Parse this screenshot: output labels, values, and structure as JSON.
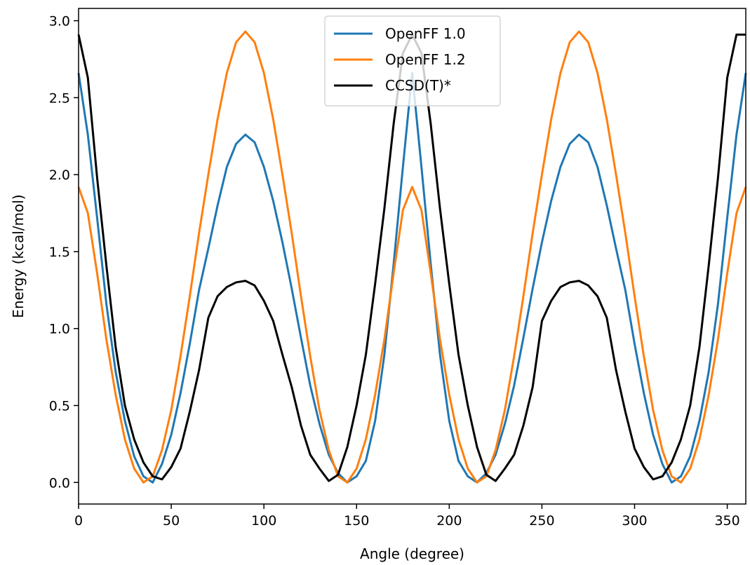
{
  "chart_data": {
    "type": "line",
    "title": "",
    "xlabel": "Angle (degree)",
    "ylabel": "Energy (kcal/mol)",
    "xlim": [
      0,
      360
    ],
    "ylim": [
      -0.14,
      3.08
    ],
    "xticks": [
      0,
      50,
      100,
      150,
      200,
      250,
      300,
      350
    ],
    "yticks": [
      0.0,
      0.5,
      1.0,
      1.5,
      2.0,
      2.5,
      3.0
    ],
    "ytick_labels": [
      "0.0",
      "0.5",
      "1.0",
      "1.5",
      "2.0",
      "2.5",
      "3.0"
    ],
    "grid": false,
    "legend_position": "top-center",
    "x": [
      0,
      5,
      10,
      15,
      20,
      25,
      30,
      35,
      40,
      45,
      50,
      55,
      60,
      65,
      70,
      75,
      80,
      85,
      90,
      95,
      100,
      105,
      110,
      115,
      120,
      125,
      130,
      135,
      140,
      145,
      150,
      155,
      160,
      165,
      170,
      175,
      180,
      185,
      190,
      195,
      200,
      205,
      210,
      215,
      220,
      225,
      230,
      235,
      240,
      245,
      250,
      255,
      260,
      265,
      270,
      275,
      280,
      285,
      290,
      295,
      300,
      305,
      310,
      315,
      320,
      325,
      330,
      335,
      340,
      345,
      350,
      355,
      360
    ],
    "series": [
      {
        "name": "OpenFF 1.0",
        "color": "#1f77b4",
        "values": [
          2.66,
          2.26,
          1.72,
          1.16,
          0.72,
          0.4,
          0.17,
          0.04,
          0.0,
          0.12,
          0.31,
          0.58,
          0.9,
          1.25,
          1.52,
          1.8,
          2.05,
          2.2,
          2.26,
          2.21,
          2.05,
          1.83,
          1.56,
          1.26,
          0.94,
          0.63,
          0.38,
          0.18,
          0.06,
          0.0,
          0.04,
          0.14,
          0.4,
          0.83,
          1.42,
          2.05,
          2.66,
          2.05,
          1.42,
          0.83,
          0.4,
          0.14,
          0.04,
          0.0,
          0.06,
          0.18,
          0.38,
          0.63,
          0.94,
          1.26,
          1.56,
          1.83,
          2.05,
          2.2,
          2.26,
          2.21,
          2.05,
          1.8,
          1.52,
          1.25,
          0.9,
          0.58,
          0.31,
          0.12,
          0.0,
          0.04,
          0.17,
          0.4,
          0.72,
          1.16,
          1.72,
          2.26,
          2.66
        ]
      },
      {
        "name": "OpenFF 1.2",
        "color": "#ff7f0e",
        "values": [
          1.92,
          1.75,
          1.36,
          0.93,
          0.57,
          0.28,
          0.09,
          0.0,
          0.04,
          0.21,
          0.47,
          0.82,
          1.21,
          1.62,
          2.0,
          2.36,
          2.66,
          2.86,
          2.93,
          2.86,
          2.66,
          2.36,
          2.0,
          1.62,
          1.21,
          0.82,
          0.47,
          0.21,
          0.04,
          0.0,
          0.09,
          0.28,
          0.57,
          0.93,
          1.36,
          1.77,
          1.92,
          1.77,
          1.36,
          0.93,
          0.57,
          0.28,
          0.09,
          0.0,
          0.04,
          0.21,
          0.47,
          0.82,
          1.21,
          1.62,
          2.0,
          2.36,
          2.66,
          2.86,
          2.93,
          2.86,
          2.66,
          2.36,
          2.0,
          1.62,
          1.21,
          0.82,
          0.47,
          0.21,
          0.04,
          0.0,
          0.09,
          0.28,
          0.57,
          0.93,
          1.36,
          1.75,
          1.92
        ]
      },
      {
        "name": "CCSD(T)*",
        "color": "#000000",
        "values": [
          2.91,
          2.63,
          1.98,
          1.41,
          0.88,
          0.5,
          0.28,
          0.13,
          0.04,
          0.02,
          0.1,
          0.22,
          0.46,
          0.73,
          1.07,
          1.21,
          1.27,
          1.3,
          1.31,
          1.28,
          1.18,
          1.05,
          0.83,
          0.62,
          0.37,
          0.18,
          0.09,
          0.01,
          0.05,
          0.23,
          0.5,
          0.83,
          1.29,
          1.78,
          2.33,
          2.79,
          2.91,
          2.79,
          2.33,
          1.78,
          1.29,
          0.83,
          0.5,
          0.23,
          0.05,
          0.01,
          0.09,
          0.18,
          0.37,
          0.62,
          1.05,
          1.18,
          1.27,
          1.3,
          1.31,
          1.28,
          1.21,
          1.07,
          0.73,
          0.46,
          0.22,
          0.1,
          0.02,
          0.04,
          0.13,
          0.28,
          0.5,
          0.88,
          1.41,
          1.98,
          2.63,
          2.91,
          2.91
        ]
      }
    ]
  }
}
